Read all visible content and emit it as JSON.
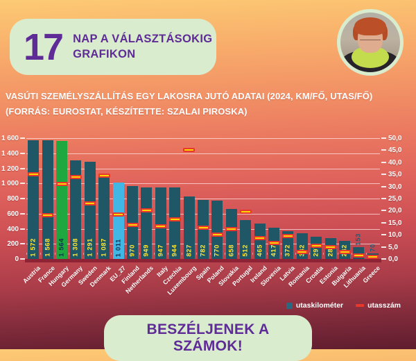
{
  "header": {
    "countdown_number": "17",
    "title_line1": "NAP A VÁLASZTÁSOKIG",
    "title_line2": "GRAFIKON"
  },
  "footer": {
    "button_label": "BESZÉLJENEK A SZÁMOK!"
  },
  "colors": {
    "pill_green": "#d9ecce",
    "accent_purple": "#5e2b97",
    "bar": "#1f5767",
    "bar_hungary": "#1fa83f",
    "bar_eu": "#41b7e6",
    "marker_fill": "#ffd600",
    "marker_border": "#e8372b",
    "value_label": "#ffe838",
    "value_label_dark": "#0d3050",
    "value_label_outside": "#235a72",
    "legend_km_swatch": "#2a6880"
  },
  "chart_data": {
    "type": "bar",
    "title": "VASÚTI SZEMÉLYSZÁLLÍTÁS EGY LAKOSRA JUTÓ ADATAI (2024, KM/FŐ, UTAS/FŐ)",
    "source": "(FORRÁS: EUROSTAT, KÉSZÍTETTE: SZALAI PIROSKA)",
    "grid": "horizontal",
    "legend_position": "bottom-right",
    "categories": [
      "Austria",
      "France",
      "Hungary",
      "Germany",
      "Sweden",
      "Denmark",
      "EU_27",
      "Finland",
      "Netherlands",
      "Italy",
      "Czechia",
      "Luxembourg",
      "Spain",
      "Poland",
      "Slovakia",
      "Portugal",
      "Ireland",
      "Slovenia",
      "Latvia",
      "Romania",
      "Croatia",
      "Estonia",
      "Bulgaria",
      "Lithuania",
      "Greece"
    ],
    "series": [
      {
        "name": "utaskilométer",
        "unit": "km/fő",
        "axis": "left",
        "values": [
          1572,
          1568,
          1564,
          1308,
          1291,
          1087,
          1011,
          970,
          949,
          947,
          944,
          827,
          782,
          770,
          658,
          512,
          465,
          417,
          372,
          342,
          297,
          280,
          242,
          153,
          70
        ],
        "labels": [
          "1 572",
          "1 568",
          "1 564",
          "1 308",
          "1 291",
          "1 087",
          "1 011",
          "970",
          "949",
          "947",
          "944",
          "827",
          "782",
          "770",
          "658",
          "512",
          "465",
          "417",
          "372",
          "342",
          "297",
          "280",
          "242",
          "153",
          "70"
        ]
      },
      {
        "name": "utasszám",
        "unit": "utas/fő",
        "axis": "right",
        "values": [
          35,
          18,
          31,
          34,
          23,
          34.5,
          18.5,
          14,
          20,
          13.5,
          16.5,
          45,
          13,
          10,
          12.5,
          19.5,
          8.5,
          6.5,
          9.5,
          3,
          5.5,
          5,
          3,
          1.5,
          1
        ]
      }
    ],
    "left_axis": {
      "min": 0,
      "max": 1600,
      "step": 200,
      "labels": [
        "0",
        "200",
        "400",
        "600",
        "800",
        "1 000",
        "1 200",
        "1 400",
        "1 600"
      ]
    },
    "right_axis": {
      "min": 0,
      "max": 50,
      "step": 5,
      "labels": [
        "0,0",
        "5,0",
        "10,0",
        "15,0",
        "20,0",
        "25,0",
        "30,0",
        "35,0",
        "40,0",
        "45,0",
        "50,0"
      ]
    },
    "special_bars": {
      "2": "bar_hungary",
      "6": "bar_eu"
    },
    "dark_label_indices": [
      2,
      6
    ],
    "outside_label_indices": [
      23,
      24
    ]
  }
}
